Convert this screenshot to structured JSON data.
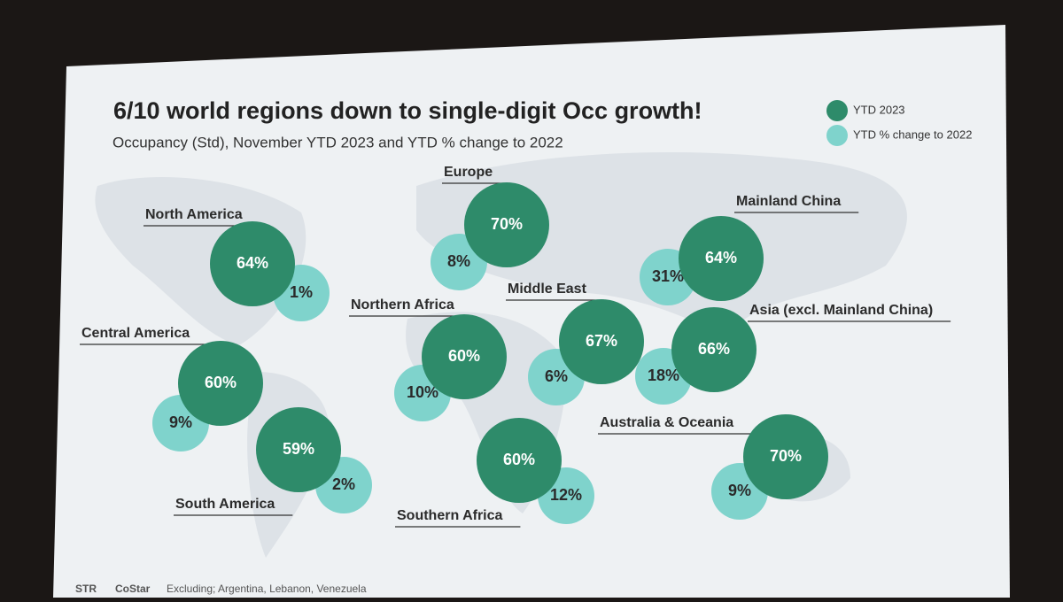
{
  "chart_data": {
    "type": "bubble-map",
    "title": "6/10 world regions down to single-digit Occ growth!",
    "subtitle": "Occupancy (Std), November YTD 2023 and YTD % change to 2022",
    "categories": [
      "North America",
      "Central America",
      "South America",
      "Europe",
      "Northern Africa",
      "Southern Africa",
      "Middle East",
      "Mainland China",
      "Asia (excl. Mainland China)",
      "Australia & Oceania"
    ],
    "series": [
      {
        "name": "YTD 2023",
        "color": "#2e8b6a",
        "values": [
          64,
          60,
          59,
          70,
          60,
          60,
          67,
          64,
          66,
          70
        ],
        "value_labels": [
          "64%",
          "60%",
          "59%",
          "70%",
          "60%",
          "60%",
          "67%",
          "64%",
          "66%",
          "70%"
        ]
      },
      {
        "name": "YTD % change to 2022",
        "color": "#7fd3cc",
        "values": [
          1,
          9,
          2,
          8,
          10,
          12,
          6,
          31,
          18,
          9
        ],
        "value_labels": [
          "1%",
          "9%",
          "2%",
          "8%",
          "10%",
          "12%",
          "6%",
          "31%",
          "18%",
          "9%"
        ]
      }
    ],
    "legend": "top-right",
    "footer": {
      "logos": [
        "STR",
        "CoStar"
      ],
      "note": "Excluding; Argentina, Lebanon, Venezuela"
    }
  }
}
